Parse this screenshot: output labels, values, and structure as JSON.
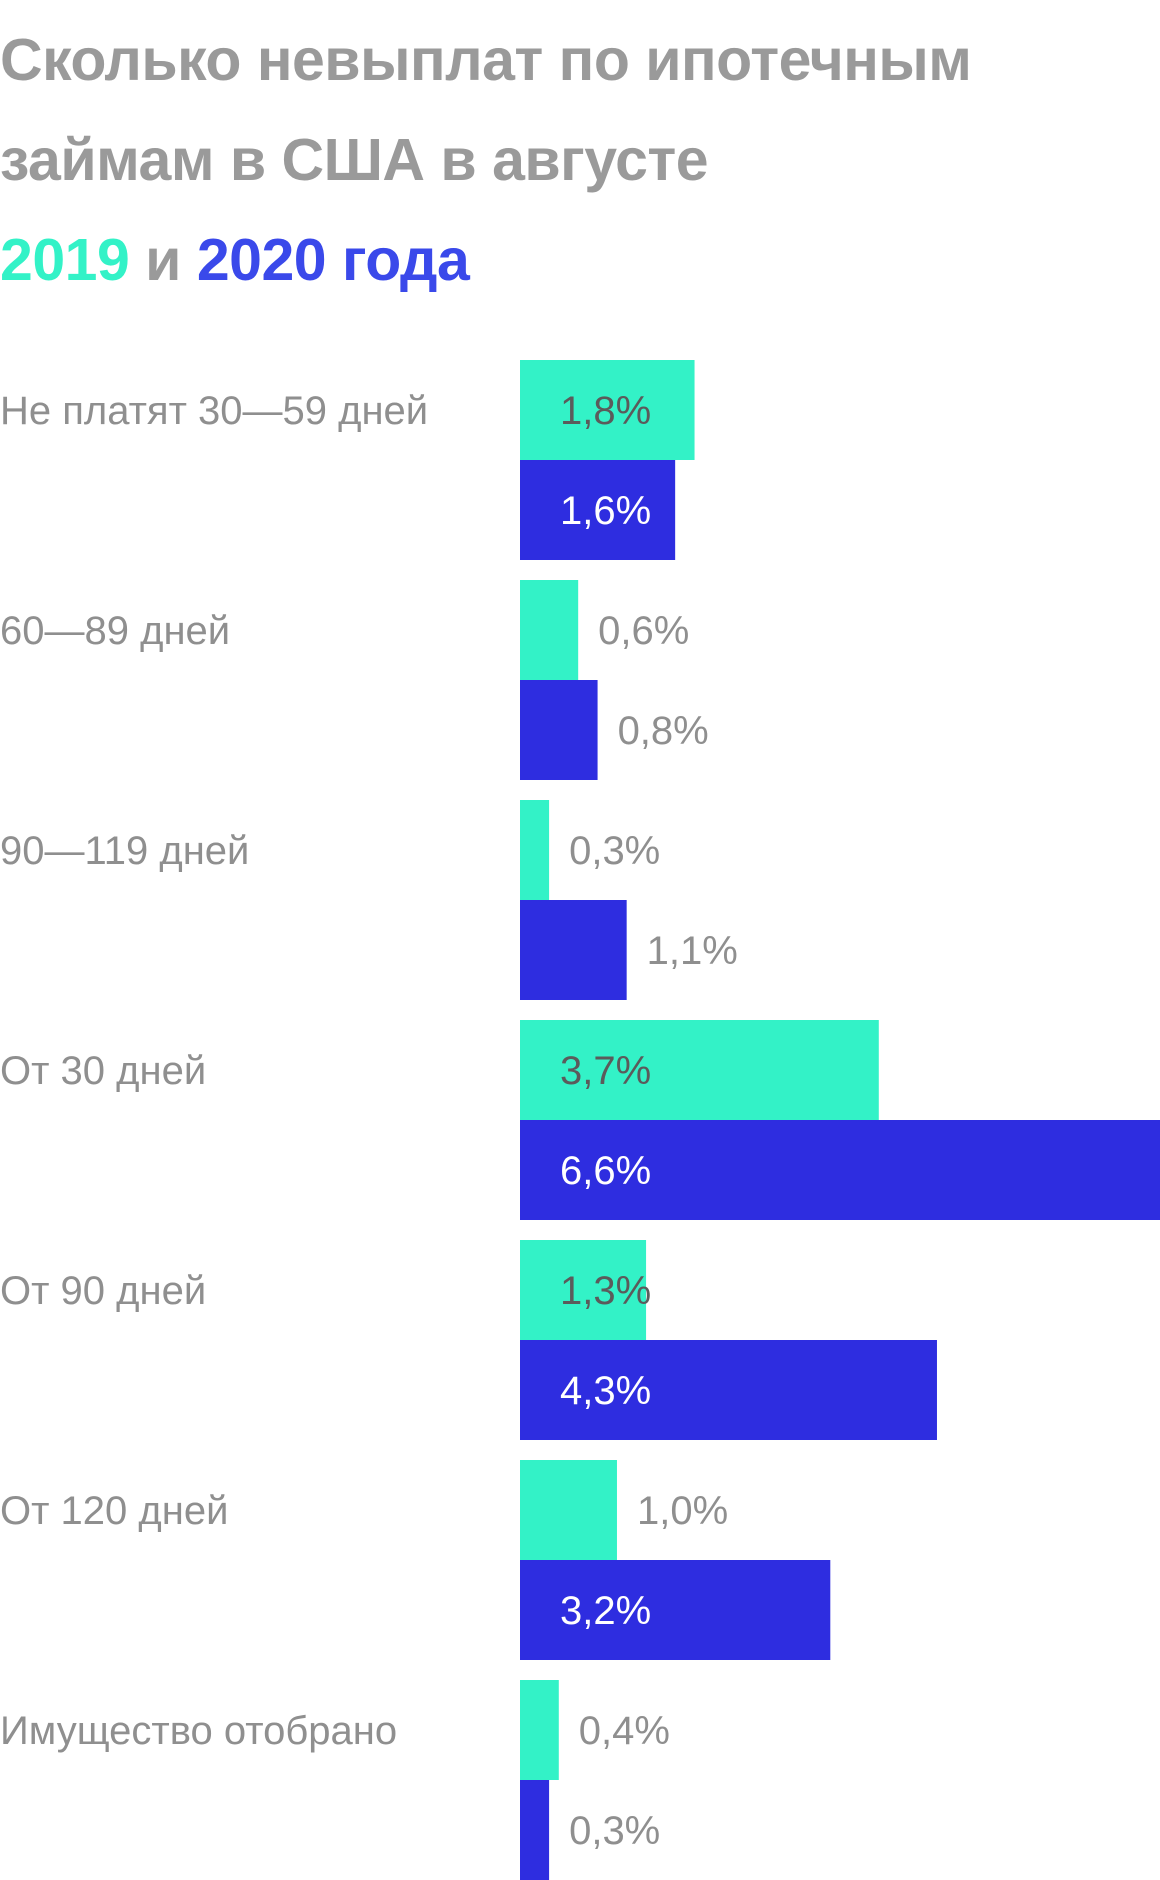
{
  "title": {
    "line1": "Сколько невыплат по ипотечным",
    "line2": "займам в США в августе",
    "year1": "2019",
    "conj": " и ",
    "year2": "2020 года"
  },
  "colors": {
    "series_2019": "#33f2c7",
    "series_2020": "#2e2de0",
    "year2_text": "#3a49ea",
    "title_gray": "#9a9a9a",
    "label_gray": "#8f8f8f",
    "inner_dark": "#5b5b5b",
    "inner_light": "#ffffff"
  },
  "chart_data": {
    "type": "bar",
    "orientation": "horizontal",
    "categories": [
      "Не платят 30—59 дней",
      "60—89 дней",
      "90—119 дней",
      "От 30 дней",
      "От 90 дней",
      "От 120 дней",
      "Имущество отобрано"
    ],
    "series": [
      {
        "name": "2019",
        "values": [
          1.8,
          0.6,
          0.3,
          3.7,
          1.3,
          1.0,
          0.4
        ],
        "labels": [
          "1,8%",
          "0,6%",
          "0,3%",
          "3,7%",
          "1,3%",
          "1,0%",
          "0,4%"
        ]
      },
      {
        "name": "2020",
        "values": [
          1.6,
          0.8,
          1.1,
          6.6,
          4.3,
          3.2,
          0.3
        ],
        "labels": [
          "1,6%",
          "0,8%",
          "1,1%",
          "6,6%",
          "4,3%",
          "3,2%",
          "0,3%"
        ]
      }
    ],
    "xlim": [
      0,
      6.6
    ],
    "grid": false,
    "legend": "title"
  }
}
